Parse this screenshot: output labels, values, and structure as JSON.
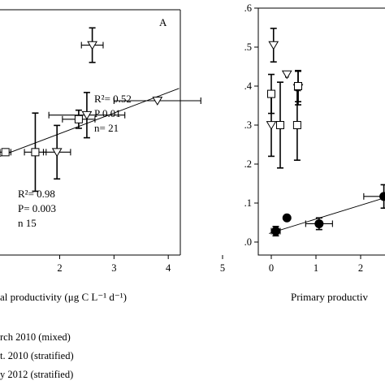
{
  "chart_data": [
    {
      "type": "scatter",
      "panel_label": "A",
      "xlabel": "al productivity (μg C L⁻¹ d⁻¹)",
      "xticks": [
        "2",
        "3",
        "4",
        "5"
      ],
      "xlim": [
        0.9,
        5
      ],
      "ylim": [
        0,
        0.6
      ],
      "grid": false,
      "stats": [
        {
          "r2": "R²= 0.52",
          "p": "P   0.01",
          "n": "n= 21"
        },
        {
          "r2": "R²= 0.98",
          "p": "P= 0.003",
          "n": "n  15"
        }
      ],
      "series": [
        {
          "marker": "square",
          "points": [
            {
              "x": 1.0,
              "y": 0.25,
              "xerr": 0.1,
              "yerr": 0
            },
            {
              "x": 1.55,
              "y": 0.25,
              "xerr": 0.2,
              "yerr": 0.095
            },
            {
              "x": 2.35,
              "y": 0.33,
              "xerr": 0.3,
              "yerr": 0.022
            }
          ]
        },
        {
          "marker": "triangle-down",
          "points": [
            {
              "x": 1.95,
              "y": 0.25,
              "xerr": 0.25,
              "yerr": 0.065
            },
            {
              "x": 2.6,
              "y": 0.51,
              "xerr": 0.2,
              "yerr": 0.042
            },
            {
              "x": 2.5,
              "y": 0.34,
              "xerr": 0.7,
              "yerr": 0.055
            },
            {
              "x": 3.8,
              "y": 0.375,
              "xerr": 0.8,
              "yerr": 0
            }
          ]
        }
      ],
      "fit_lines": [
        {
          "x": [
            0.9,
            4.2
          ],
          "y": [
            0.24,
            0.405
          ]
        }
      ]
    },
    {
      "type": "scatter",
      "xlabel": "Primary productiv",
      "xticks": [
        "0",
        "1",
        "2"
      ],
      "yticks": [
        ".0",
        ".1",
        ".2",
        ".3",
        ".4",
        ".5",
        ".6"
      ],
      "xlim": [
        -0.3,
        2.6
      ],
      "ylim": [
        -0.02,
        0.6
      ],
      "grid": false,
      "series": [
        {
          "marker": "circle-filled",
          "points": [
            {
              "x": 0.1,
              "y": 0.028,
              "xerr": 0.1,
              "yerr": 0.012
            },
            {
              "x": 0.35,
              "y": 0.062,
              "xerr": 0.05,
              "yerr": 0
            },
            {
              "x": 1.07,
              "y": 0.047,
              "xerr": 0.3,
              "yerr": 0.015
            },
            {
              "x": 2.52,
              "y": 0.117,
              "xerr": 0.45,
              "yerr": 0.03
            }
          ]
        },
        {
          "marker": "triangle-down",
          "points": [
            {
              "x": 0.0,
              "y": 0.3,
              "xerr": 0,
              "yerr": 0.08
            },
            {
              "x": 0.05,
              "y": 0.505,
              "xerr": 0,
              "yerr": 0.043
            },
            {
              "x": 0.35,
              "y": 0.43,
              "xerr": 0.03,
              "yerr": 0
            },
            {
              "x": 0.6,
              "y": 0.395,
              "xerr": 0.05,
              "yerr": 0.043
            }
          ]
        },
        {
          "marker": "square",
          "points": [
            {
              "x": 0.0,
              "y": 0.38,
              "xerr": 0,
              "yerr": 0.05
            },
            {
              "x": 0.2,
              "y": 0.3,
              "xerr": 0,
              "yerr": 0.11
            },
            {
              "x": 0.58,
              "y": 0.3,
              "xerr": 0,
              "yerr": 0.09
            },
            {
              "x": 0.6,
              "y": 0.4,
              "xerr": 0,
              "yerr": 0.04
            }
          ]
        }
      ],
      "fit_lines": [
        {
          "x": [
            -0.05,
            2.5
          ],
          "y": [
            0.022,
            0.112
          ]
        }
      ]
    }
  ],
  "legend": [
    {
      "marker": "circle-filled",
      "label": "rch 2010 (mixed)"
    },
    {
      "marker": "square",
      "label": "t. 2010 (stratified)"
    },
    {
      "marker": "triangle-down",
      "label": "y 2012 (stratified)"
    }
  ]
}
